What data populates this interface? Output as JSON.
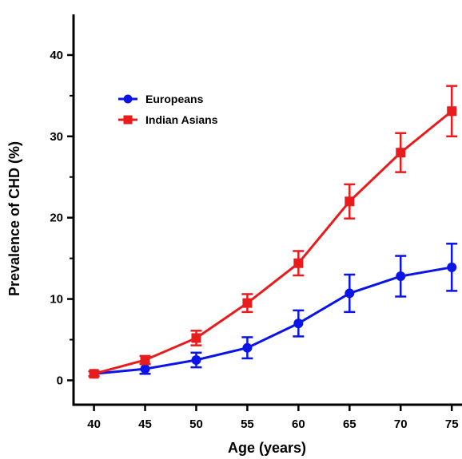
{
  "chart_data": {
    "type": "line",
    "xlabel": "Age (years)",
    "ylabel": "Prevalence of CHD (%)",
    "xlim": [
      38,
      76
    ],
    "ylim": [
      -3,
      45
    ],
    "x": [
      40,
      45,
      50,
      55,
      60,
      65,
      70,
      75
    ],
    "x_ticks": [
      "40",
      "45",
      "50",
      "55",
      "60",
      "65",
      "70",
      "75"
    ],
    "y_ticks": [
      0,
      10,
      20,
      30,
      40
    ],
    "legend_position": "top-left",
    "series": [
      {
        "name": "Europeans",
        "color": "#0a14e6",
        "marker": "circle",
        "values": [
          0.8,
          1.4,
          2.5,
          4.0,
          7.0,
          10.7,
          12.8,
          13.9
        ],
        "error": [
          0.3,
          0.6,
          0.9,
          1.3,
          1.6,
          2.3,
          2.5,
          2.9
        ]
      },
      {
        "name": "Indian Asians",
        "color": "#e81c1c",
        "marker": "square",
        "values": [
          0.8,
          2.5,
          5.2,
          9.5,
          14.4,
          22.0,
          28.0,
          33.1
        ],
        "error": [
          0.3,
          0.5,
          0.9,
          1.1,
          1.5,
          2.1,
          2.4,
          3.1
        ]
      }
    ]
  }
}
